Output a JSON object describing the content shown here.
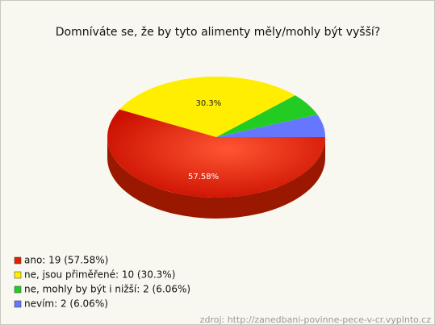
{
  "chart_data": {
    "type": "pie",
    "title": "Domníváte se, že by tyto alimenty měly/mohly být vyšší?",
    "categories": [
      "ano: 19 (57.58%)",
      "ne, jsou přiměřené: 10 (30.3%)",
      "ne, mohly by být i nižší: 2 (6.06%)",
      "nevím: 2 (6.06%)"
    ],
    "values": [
      57.58,
      30.3,
      6.06,
      6.06
    ],
    "value_labels": [
      "57.58%",
      "30.3%",
      null,
      null
    ],
    "colors": [
      "#dd2200",
      "#ffee00",
      "#22cc22",
      "#6677ff"
    ],
    "source": "zdroj: http://zanedbani-povinne-pece-v-cr.vyplnto.cz"
  }
}
